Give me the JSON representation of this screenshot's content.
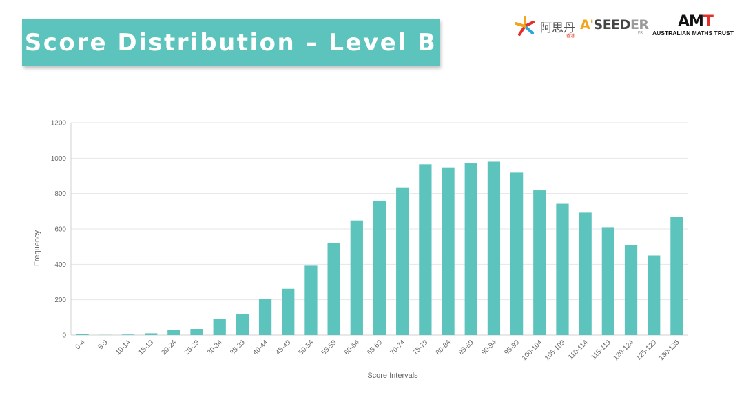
{
  "slide": {
    "title": "Score Distribution – Level B"
  },
  "logos": {
    "aasd_cn": "阿思丹",
    "aasd_sub": "香港",
    "aseeder_a": "A'",
    "aseeder_mid": "SEED",
    "aseeder_er": "ER",
    "aseeder_sub": "PR",
    "amt_mark_a": "AM",
    "amt_mark_t": "T",
    "amt_text": "AUSTRALIAN MATHS TRUST"
  },
  "colors": {
    "bar": "#5cc3bd",
    "title_bg": "#5cc3bd",
    "grid": "#e6e6e6",
    "axis": "#d0d0d0"
  },
  "chart_data": {
    "type": "bar",
    "xlabel": "Score Intervals",
    "ylabel": "Frequency",
    "ylim": [
      0,
      1200
    ],
    "yticks": [
      0,
      200,
      400,
      600,
      800,
      1000,
      1200
    ],
    "grid": true,
    "legend": "none",
    "categories": [
      "0-4",
      "5-9",
      "10-14",
      "15-19",
      "20-24",
      "25-29",
      "30-34",
      "35-39",
      "40-44",
      "45-49",
      "50-54",
      "55-59",
      "60-64",
      "65-69",
      "70-74",
      "75-79",
      "80-84",
      "85-89",
      "90-94",
      "95-99",
      "100-104",
      "105-109",
      "110-114",
      "115-119",
      "120-124",
      "125-129",
      "130-135"
    ],
    "values": [
      5,
      1,
      3,
      10,
      28,
      35,
      90,
      118,
      205,
      262,
      392,
      522,
      648,
      760,
      835,
      965,
      948,
      970,
      980,
      918,
      818,
      742,
      692,
      610,
      510,
      450,
      668
    ]
  }
}
